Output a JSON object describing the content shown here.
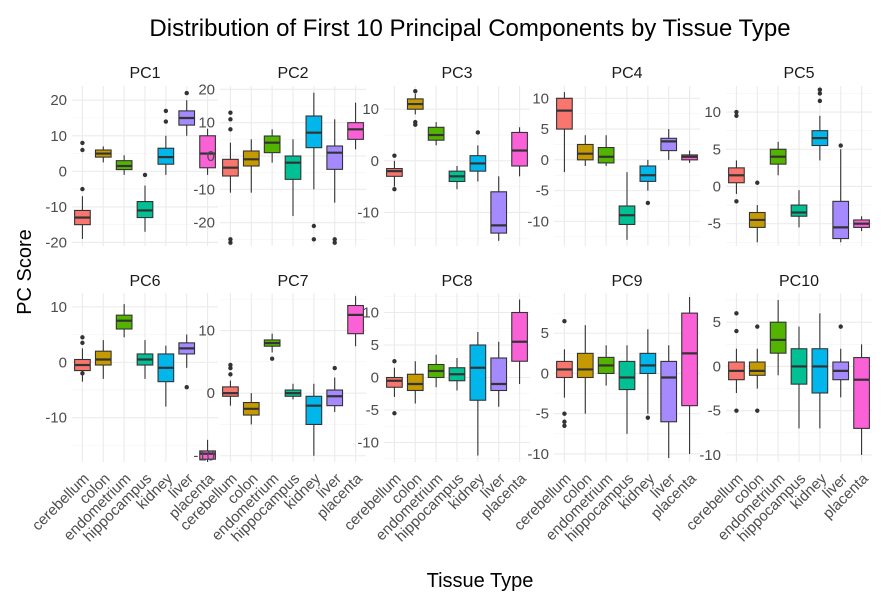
{
  "chart_data": {
    "type": "boxplot",
    "title": "Distribution of First 10 Principal Components by Tissue Type",
    "xlabel": "Tissue Type",
    "ylabel": "PC Score",
    "categories": [
      "cerebellum",
      "colon",
      "endometrium",
      "hippocampus",
      "kidney",
      "liver",
      "placenta"
    ],
    "colors": [
      "#F8766D",
      "#C49A00",
      "#53B400",
      "#00C094",
      "#00B6EB",
      "#A58AFF",
      "#FB61D7"
    ],
    "grid": true,
    "legend": "none",
    "panels": [
      {
        "name": "PC1",
        "ylim": [
          -21,
          24
        ],
        "yticks": [
          -20,
          -10,
          0,
          10,
          20
        ],
        "boxes": [
          {
            "q1": -15,
            "median": -13,
            "q3": -11,
            "lo": -19,
            "hi": -7,
            "outliers": [
              -5,
              6,
              8
            ]
          },
          {
            "q1": 4,
            "median": 5,
            "q3": 6,
            "lo": 2.5,
            "hi": 7,
            "outliers": []
          },
          {
            "q1": 0.5,
            "median": 1.5,
            "q3": 3,
            "lo": -1,
            "hi": 4.5,
            "outliers": []
          },
          {
            "q1": -13,
            "median": -11,
            "q3": -8.5,
            "lo": -17,
            "hi": -4,
            "outliers": [
              -1
            ]
          },
          {
            "q1": 2,
            "median": 4,
            "q3": 6.5,
            "lo": -1,
            "hi": 10,
            "outliers": [
              14,
              17
            ]
          },
          {
            "q1": 13,
            "median": 15,
            "q3": 17,
            "lo": 10,
            "hi": 20,
            "outliers": [
              22
            ]
          },
          {
            "q1": 1,
            "median": 5,
            "q3": 10,
            "lo": -1,
            "hi": 12,
            "outliers": []
          }
        ]
      },
      {
        "name": "PC2",
        "ylim": [
          -27,
          21
        ],
        "yticks": [
          -20,
          -10,
          0,
          10,
          20
        ],
        "boxes": [
          {
            "q1": -6,
            "median": -3.5,
            "q3": -1,
            "lo": -11,
            "hi": 4,
            "outliers": [
              8,
              11,
              13,
              -25,
              -26
            ]
          },
          {
            "q1": -3,
            "median": -1,
            "q3": 1.5,
            "lo": -11,
            "hi": 5,
            "outliers": []
          },
          {
            "q1": 1,
            "median": 4,
            "q3": 6,
            "lo": -2,
            "hi": 8,
            "outliers": []
          },
          {
            "q1": -7,
            "median": -2,
            "q3": 0,
            "lo": -18,
            "hi": 5,
            "outliers": []
          },
          {
            "q1": 2.5,
            "median": 7,
            "q3": 12,
            "lo": -10,
            "hi": 19,
            "outliers": [
              -21,
              -25
            ]
          },
          {
            "q1": -4,
            "median": 1,
            "q3": 3,
            "lo": -14,
            "hi": 11,
            "outliers": [
              -25,
              -26
            ]
          },
          {
            "q1": 5,
            "median": 8,
            "q3": 10,
            "lo": 2,
            "hi": 16,
            "outliers": []
          }
        ]
      },
      {
        "name": "PC3",
        "ylim": [
          -16.5,
          14.5
        ],
        "yticks": [
          -10,
          0,
          10
        ],
        "boxes": [
          {
            "q1": -3,
            "median": -2,
            "q3": -1.5,
            "lo": -5,
            "hi": 0,
            "outliers": [
              1,
              -5.5
            ]
          },
          {
            "q1": 10,
            "median": 11,
            "q3": 12,
            "lo": 9,
            "hi": 13,
            "outliers": [
              7,
              7.5,
              13.5
            ]
          },
          {
            "q1": 4,
            "median": 5,
            "q3": 6.5,
            "lo": 3,
            "hi": 7.5,
            "outliers": []
          },
          {
            "q1": -4,
            "median": -3,
            "q3": -2,
            "lo": -5.5,
            "hi": -1,
            "outliers": []
          },
          {
            "q1": -2,
            "median": -0.5,
            "q3": 1,
            "lo": -4,
            "hi": 3,
            "outliers": [
              5.5
            ]
          },
          {
            "q1": -14,
            "median": -12.5,
            "q3": -6,
            "lo": -15.5,
            "hi": -3,
            "outliers": []
          },
          {
            "q1": -1,
            "median": 2,
            "q3": 5.5,
            "lo": -3,
            "hi": 6.5,
            "outliers": []
          }
        ]
      },
      {
        "name": "PC4",
        "ylim": [
          -14,
          12
        ],
        "yticks": [
          -10,
          -5,
          0,
          5,
          10
        ],
        "boxes": [
          {
            "q1": 5,
            "median": 8,
            "q3": 10,
            "lo": -2,
            "hi": 11,
            "outliers": []
          },
          {
            "q1": 0,
            "median": 1,
            "q3": 2.5,
            "lo": -1,
            "hi": 4,
            "outliers": []
          },
          {
            "q1": -0.5,
            "median": 0.5,
            "q3": 2,
            "lo": -1,
            "hi": 4,
            "outliers": []
          },
          {
            "q1": -10.5,
            "median": -9,
            "q3": -7.5,
            "lo": -13,
            "hi": -2,
            "outliers": []
          },
          {
            "q1": -3.5,
            "median": -2.5,
            "q3": -1,
            "lo": -5,
            "hi": 0,
            "outliers": [
              -7
            ]
          },
          {
            "q1": 1.5,
            "median": 3,
            "q3": 3.5,
            "lo": 0,
            "hi": 5,
            "outliers": []
          },
          {
            "q1": 0,
            "median": 0.5,
            "q3": 0.8,
            "lo": -0.5,
            "hi": 1.5,
            "outliers": []
          }
        ]
      },
      {
        "name": "PC5",
        "ylim": [
          -8,
          13.5
        ],
        "yticks": [
          -5,
          0,
          5,
          10
        ],
        "boxes": [
          {
            "q1": 0.5,
            "median": 1.5,
            "q3": 2.5,
            "lo": -1,
            "hi": 3.5,
            "outliers": [
              9.5,
              10,
              -2
            ]
          },
          {
            "q1": -5.5,
            "median": -4.5,
            "q3": -3.5,
            "lo": -7.5,
            "hi": -2.5,
            "outliers": [
              0.5
            ]
          },
          {
            "q1": 3,
            "median": 4,
            "q3": 5,
            "lo": 1.5,
            "hi": 6,
            "outliers": []
          },
          {
            "q1": -4,
            "median": -3.5,
            "q3": -2.5,
            "lo": -5.5,
            "hi": -0.5,
            "outliers": []
          },
          {
            "q1": 5.5,
            "median": 6.5,
            "q3": 7.5,
            "lo": 3.5,
            "hi": 9.5,
            "outliers": [
              11.5,
              12.5,
              13
            ]
          },
          {
            "q1": -7,
            "median": -5.5,
            "q3": -2,
            "lo": -7.5,
            "hi": 5,
            "outliers": [
              5.5
            ]
          },
          {
            "q1": -5.5,
            "median": -5,
            "q3": -4.5,
            "lo": -6,
            "hi": -4,
            "outliers": []
          }
        ]
      },
      {
        "name": "PC6",
        "ylim": [
          -18,
          12.5
        ],
        "yticks": [
          -10,
          0,
          10
        ],
        "boxes": [
          {
            "q1": -1.5,
            "median": -0.5,
            "q3": 0.5,
            "lo": -3.5,
            "hi": 2.5,
            "outliers": [
              3.5,
              4.5,
              -2
            ]
          },
          {
            "q1": -0.5,
            "median": 0.5,
            "q3": 2,
            "lo": -3,
            "hi": 4,
            "outliers": []
          },
          {
            "q1": 6,
            "median": 7.5,
            "q3": 8.5,
            "lo": 4.5,
            "hi": 10.5,
            "outliers": []
          },
          {
            "q1": -0.5,
            "median": 0.5,
            "q3": 1.5,
            "lo": -3,
            "hi": 4,
            "outliers": []
          },
          {
            "q1": -3.5,
            "median": -1,
            "q3": 1.5,
            "lo": -8,
            "hi": 3,
            "outliers": []
          },
          {
            "q1": 1.5,
            "median": 2.5,
            "q3": 3.5,
            "lo": -1,
            "hi": 5,
            "outliers": [
              -4.5
            ]
          },
          {
            "q1": -17.5,
            "median": -16.5,
            "q3": -16,
            "lo": -18,
            "hi": -14,
            "outliers": []
          }
        ]
      },
      {
        "name": "PC7",
        "ylim": [
          -11,
          16
        ],
        "yticks": [
          -10,
          0,
          10
        ],
        "boxes": [
          {
            "q1": -0.5,
            "median": 0,
            "q3": 1,
            "lo": -2,
            "hi": 2,
            "outliers": [
              3,
              4,
              4.5
            ]
          },
          {
            "q1": -3.5,
            "median": -2.5,
            "q3": -1.5,
            "lo": -5,
            "hi": 0,
            "outliers": []
          },
          {
            "q1": 7.5,
            "median": 8,
            "q3": 8.5,
            "lo": 6.5,
            "hi": 9.5,
            "outliers": [
              5.5
            ]
          },
          {
            "q1": -0.5,
            "median": 0,
            "q3": 0.5,
            "lo": -1,
            "hi": 1.5,
            "outliers": []
          },
          {
            "q1": -5,
            "median": -2,
            "q3": -0.5,
            "lo": -10,
            "hi": 1.5,
            "outliers": []
          },
          {
            "q1": -2,
            "median": -0.5,
            "q3": 0.5,
            "lo": -3,
            "hi": 2.5,
            "outliers": [
              4
            ]
          },
          {
            "q1": 9.5,
            "median": 12.5,
            "q3": 14,
            "lo": 7.5,
            "hi": 15.5,
            "outliers": []
          }
        ]
      },
      {
        "name": "PC8",
        "ylim": [
          -13,
          13
        ],
        "yticks": [
          -10,
          -5,
          0,
          5,
          10
        ],
        "boxes": [
          {
            "q1": -1.5,
            "median": -0.5,
            "q3": 0,
            "lo": -3,
            "hi": 1.5,
            "outliers": [
              2.5,
              -5.5
            ]
          },
          {
            "q1": -2,
            "median": -1,
            "q3": 0.5,
            "lo": -4,
            "hi": 2.5,
            "outliers": []
          },
          {
            "q1": 0,
            "median": 1,
            "q3": 2,
            "lo": -1.5,
            "hi": 3.5,
            "outliers": []
          },
          {
            "q1": -0.5,
            "median": 0.5,
            "q3": 1.5,
            "lo": -2,
            "hi": 3,
            "outliers": []
          },
          {
            "q1": -3.5,
            "median": 1.5,
            "q3": 5,
            "lo": -12,
            "hi": 7,
            "outliers": []
          },
          {
            "q1": -2,
            "median": -1,
            "q3": 3,
            "lo": -4.5,
            "hi": 5.5,
            "outliers": []
          },
          {
            "q1": 2.5,
            "median": 5.5,
            "q3": 10,
            "lo": -1,
            "hi": 12,
            "outliers": []
          }
        ]
      },
      {
        "name": "PC9",
        "ylim": [
          -11,
          10
        ],
        "yticks": [
          -10,
          -5,
          0,
          5
        ],
        "boxes": [
          {
            "q1": -0.5,
            "median": 0.5,
            "q3": 1.5,
            "lo": -3,
            "hi": 3,
            "outliers": [
              6.5,
              -5,
              -6,
              -6.5
            ]
          },
          {
            "q1": -0.5,
            "median": 0.5,
            "q3": 2.5,
            "lo": -5,
            "hi": 6,
            "outliers": []
          },
          {
            "q1": 0,
            "median": 1,
            "q3": 2,
            "lo": -1.5,
            "hi": 3.5,
            "outliers": []
          },
          {
            "q1": -2,
            "median": -0.5,
            "q3": 1.5,
            "lo": -7.5,
            "hi": 3.5,
            "outliers": []
          },
          {
            "q1": 0,
            "median": 1,
            "q3": 2.5,
            "lo": -5,
            "hi": 5.5,
            "outliers": [
              -5.5
            ]
          },
          {
            "q1": -6,
            "median": -0.5,
            "q3": 1.5,
            "lo": -10.5,
            "hi": 3.5,
            "outliers": []
          },
          {
            "q1": -4,
            "median": 2.5,
            "q3": 7.5,
            "lo": -10,
            "hi": 9.5,
            "outliers": []
          }
        ]
      },
      {
        "name": "PC10",
        "ylim": [
          -10.8,
          8.3
        ],
        "yticks": [
          -10,
          -5,
          0,
          5
        ],
        "boxes": [
          {
            "q1": -1.5,
            "median": -0.5,
            "q3": 0.5,
            "lo": -3,
            "hi": 2,
            "outliers": [
              4,
              6,
              -5
            ]
          },
          {
            "q1": -1,
            "median": -0.5,
            "q3": 0.5,
            "lo": -2.5,
            "hi": 2,
            "outliers": [
              -5,
              4.5
            ]
          },
          {
            "q1": 1.5,
            "median": 3,
            "q3": 5,
            "lo": -1,
            "hi": 7.5,
            "outliers": []
          },
          {
            "q1": -2,
            "median": 0,
            "q3": 2,
            "lo": -7,
            "hi": 4.5,
            "outliers": []
          },
          {
            "q1": -3,
            "median": 0,
            "q3": 2,
            "lo": -7,
            "hi": 6,
            "outliers": []
          },
          {
            "q1": -1.5,
            "median": -0.5,
            "q3": 0.5,
            "lo": -3.5,
            "hi": 2,
            "outliers": [
              4.5
            ]
          },
          {
            "q1": -7,
            "median": -1.5,
            "q3": 1,
            "lo": -10,
            "hi": 2.5,
            "outliers": []
          }
        ]
      }
    ]
  }
}
